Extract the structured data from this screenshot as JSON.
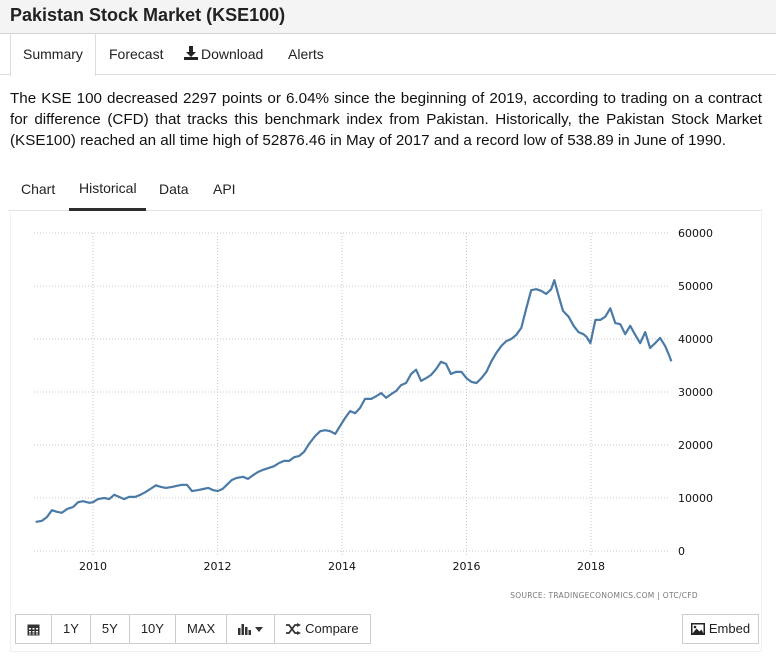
{
  "header": {
    "title": "Pakistan Stock Market (KSE100)"
  },
  "main_tabs": [
    {
      "label": "Summary",
      "active": true
    },
    {
      "label": "Forecast",
      "active": false
    },
    {
      "label": "Download",
      "active": false,
      "icon": "download-icon"
    },
    {
      "label": "Alerts",
      "active": false
    }
  ],
  "description": "The KSE 100 decreased 2297 points or 6.04% since the beginning of 2019, according to trading on a contract for difference (CFD) that tracks this benchmark index from Pakistan. Historically, the Pakistan Stock Market (KSE100) reached an all time high of 52876.46 in May of 2017 and a record low of 538.89 in June of 1990.",
  "sub_tabs": [
    {
      "label": "Chart",
      "active": false
    },
    {
      "label": "Historical",
      "active": true
    },
    {
      "label": "Data",
      "active": false
    },
    {
      "label": "API",
      "active": false
    }
  ],
  "toolbar": {
    "calendar_icon": "calendar-icon",
    "ranges": [
      "1Y",
      "5Y",
      "10Y",
      "MAX"
    ],
    "chart_type_icon": "bar-chart-icon",
    "compare_label": "Compare",
    "compare_icon": "shuffle-icon",
    "embed_label": "Embed",
    "embed_icon": "image-icon"
  },
  "colors": {
    "line": "#4a7aa6",
    "grid": "#c8c8c8",
    "text": "#111111"
  },
  "chart_data": {
    "type": "line",
    "title": "",
    "xlabel": "",
    "ylabel": "",
    "source": "SOURCE: TRADINGECONOMICS.COM  |  OTC/CFD",
    "xlim": [
      2009.0,
      2019.35
    ],
    "ylim": [
      0,
      60000
    ],
    "x_ticks": [
      2010,
      2012,
      2014,
      2016,
      2018
    ],
    "y_ticks": [
      0,
      10000,
      20000,
      30000,
      40000,
      50000,
      60000
    ],
    "y_axis_side": "right",
    "grid": true,
    "legend": "none",
    "series": [
      {
        "name": "KSE100",
        "x": [
          2009.08,
          2009.18,
          2009.26,
          2009.34,
          2009.42,
          2009.5,
          2009.58,
          2009.68,
          2009.76,
          2009.84,
          2009.94,
          2010.0,
          2010.08,
          2010.18,
          2010.26,
          2010.34,
          2010.42,
          2010.5,
          2010.58,
          2010.68,
          2010.76,
          2010.84,
          2010.92,
          2011.01,
          2011.09,
          2011.17,
          2011.27,
          2011.35,
          2011.43,
          2011.51,
          2011.59,
          2011.69,
          2011.77,
          2011.85,
          2011.93,
          2012.0,
          2012.08,
          2012.16,
          2012.23,
          2012.31,
          2012.41,
          2012.49,
          2012.57,
          2012.65,
          2012.73,
          2012.83,
          2012.91,
          2012.99,
          2013.07,
          2013.15,
          2013.23,
          2013.31,
          2013.39,
          2013.47,
          2013.57,
          2013.65,
          2013.73,
          2013.81,
          2013.89,
          2013.97,
          2014.05,
          2014.13,
          2014.21,
          2014.29,
          2014.37,
          2014.47,
          2014.55,
          2014.63,
          2014.71,
          2014.79,
          2014.87,
          2014.95,
          2015.03,
          2015.11,
          2015.19,
          2015.27,
          2015.35,
          2015.43,
          2015.51,
          2015.59,
          2015.67,
          2015.75,
          2015.83,
          2015.92,
          2016.0,
          2016.08,
          2016.16,
          2016.24,
          2016.32,
          2016.4,
          2016.48,
          2016.56,
          2016.64,
          2016.72,
          2016.8,
          2016.88,
          2016.96,
          2017.04,
          2017.12,
          2017.2,
          2017.28,
          2017.36,
          2017.41,
          2017.49,
          2017.55,
          2017.64,
          2017.72,
          2017.8,
          2017.88,
          2017.93,
          2017.99,
          2018.07,
          2018.15,
          2018.23,
          2018.31,
          2018.39,
          2018.47,
          2018.55,
          2018.63,
          2018.71,
          2018.79,
          2018.87,
          2018.95,
          2019.03,
          2019.11,
          2019.19,
          2019.26,
          2019.29
        ],
        "y": [
          5500,
          5700,
          6400,
          7700,
          7400,
          7200,
          7900,
          8300,
          9200,
          9400,
          9100,
          9200,
          9800,
          10000,
          9800,
          10600,
          10200,
          9800,
          10200,
          10200,
          10600,
          11100,
          11700,
          12400,
          12100,
          11900,
          12100,
          12300,
          12500,
          12500,
          11300,
          11500,
          11700,
          11900,
          11500,
          11300,
          11700,
          12600,
          13400,
          13800,
          14000,
          13600,
          14300,
          14900,
          15300,
          15700,
          16000,
          16600,
          17000,
          17000,
          17700,
          17900,
          18700,
          20200,
          21700,
          22600,
          22800,
          22600,
          22100,
          23600,
          25100,
          26400,
          26000,
          27000,
          28700,
          28700,
          29200,
          29800,
          28900,
          29600,
          30200,
          31300,
          31700,
          33400,
          34200,
          32100,
          32600,
          33200,
          34300,
          35700,
          35300,
          33400,
          33800,
          33800,
          32600,
          31900,
          31700,
          32600,
          33800,
          35800,
          37400,
          38700,
          39600,
          40000,
          40800,
          42100,
          45800,
          49200,
          49400,
          49100,
          48500,
          49400,
          51100,
          47700,
          45300,
          44200,
          42500,
          41300,
          40900,
          40400,
          39200,
          43600,
          43600,
          44200,
          45800,
          43000,
          42800,
          40900,
          42500,
          40800,
          39200,
          41300,
          38300,
          39200,
          40200,
          38700,
          36800,
          35800
        ]
      }
    ]
  }
}
